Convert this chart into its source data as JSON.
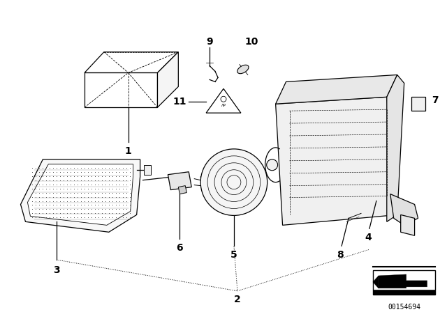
{
  "bg_color": "#ffffff",
  "line_color": "#000000",
  "fig_width": 6.4,
  "fig_height": 4.48,
  "dpi": 100,
  "catalog_num": "00154694",
  "layout": "normalized_0_to_640_448"
}
